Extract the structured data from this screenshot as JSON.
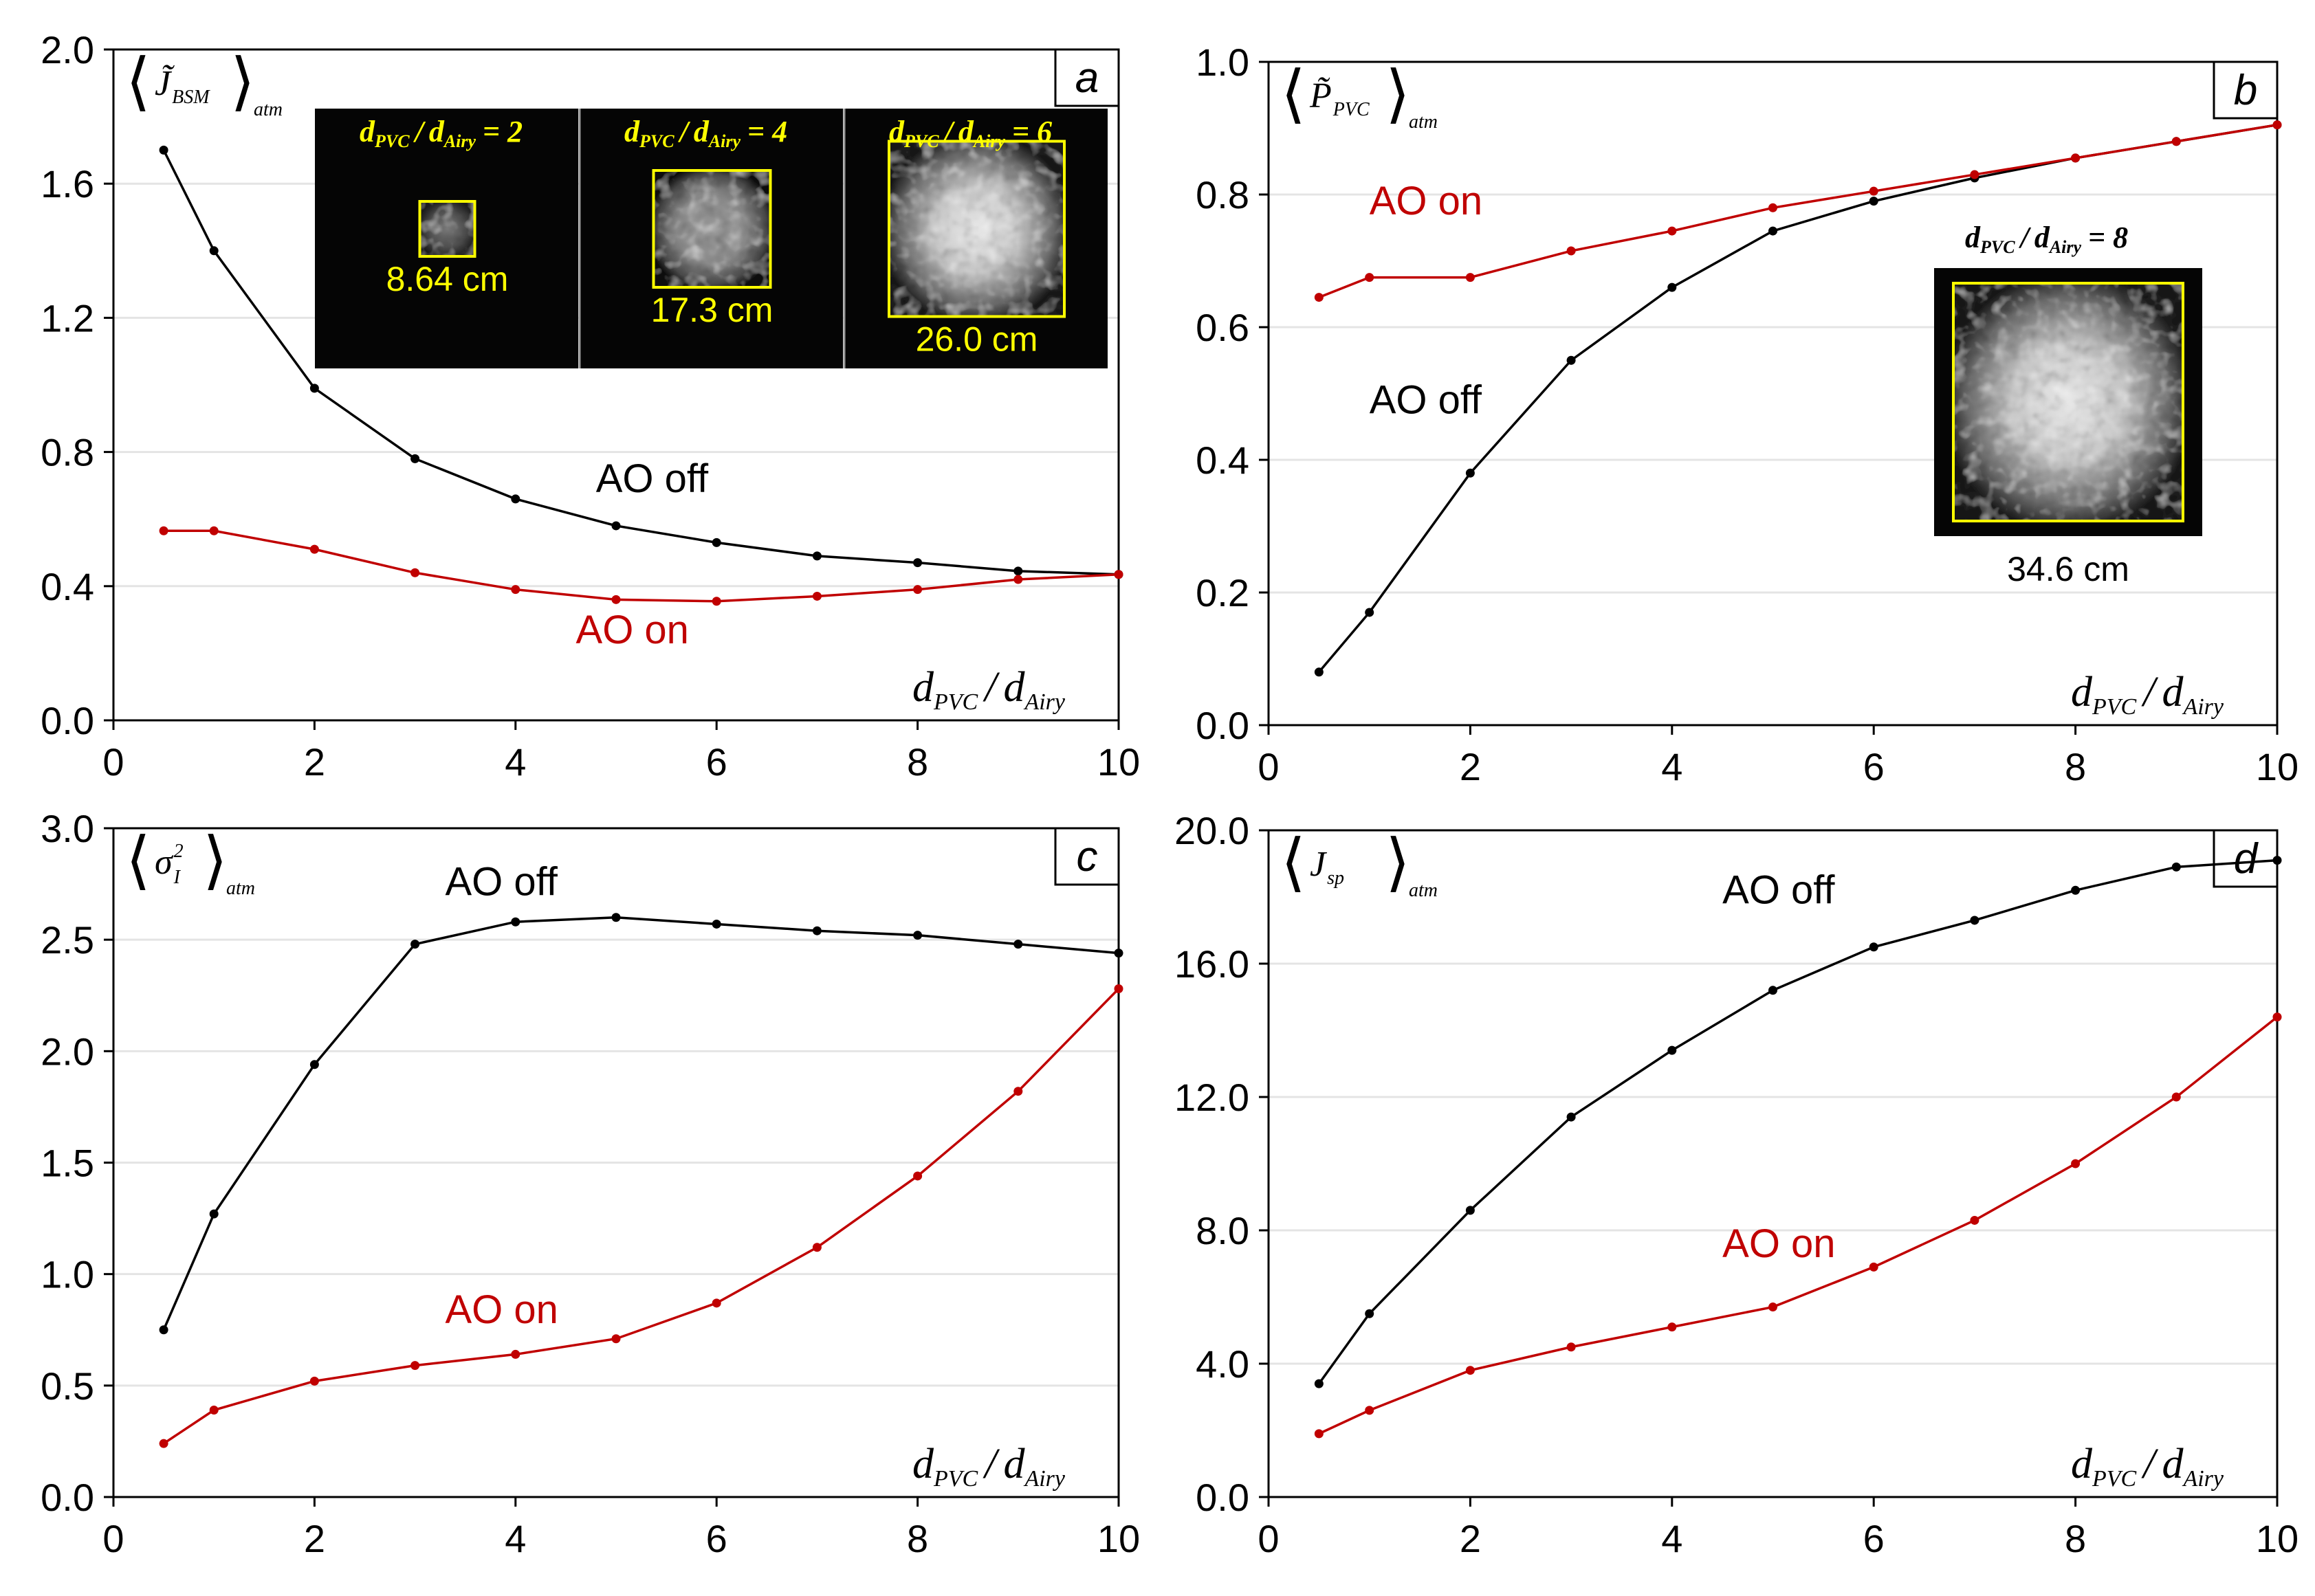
{
  "colors": {
    "ao_off": "#000000",
    "ao_on": "#c00000",
    "inset_outline": "#ffff00",
    "inset_text": "#ffff00",
    "grid": "#e4e4e4"
  },
  "x_axis_label": {
    "var1": "d",
    "sub1": "PVC",
    "sep": "/",
    "var2": "d",
    "sub2": "Airy"
  },
  "chart_data": [
    {
      "panel": "a",
      "type": "line",
      "ylabel": {
        "var": "J̃",
        "sub": "BSM",
        "avg_sub": "atm"
      },
      "xlim": [
        0,
        10
      ],
      "ylim": [
        0,
        2.0
      ],
      "xticks": [
        "0",
        "2",
        "4",
        "6",
        "8",
        "10"
      ],
      "yticks": [
        "0.0",
        "0.4",
        "0.8",
        "1.2",
        "1.6",
        "2.0"
      ],
      "ytick_values": [
        0,
        0.4,
        0.8,
        1.2,
        1.6,
        2.0
      ],
      "grid": "horizontal",
      "x": [
        0.5,
        1,
        2,
        3,
        4,
        5,
        6,
        7,
        8,
        9,
        10
      ],
      "series": [
        {
          "name": "AO off",
          "values": [
            1.7,
            1.4,
            0.99,
            0.78,
            0.66,
            0.58,
            0.53,
            0.49,
            0.47,
            0.445,
            0.435
          ]
        },
        {
          "name": "AO on",
          "values": [
            0.565,
            0.565,
            0.51,
            0.44,
            0.39,
            0.36,
            0.355,
            0.37,
            0.39,
            0.42,
            0.435
          ]
        }
      ],
      "insets": [
        {
          "ratio": "2",
          "size": "8.64 cm"
        },
        {
          "ratio": "4",
          "size": "17.3 cm"
        },
        {
          "ratio": "6",
          "size": "26.0 cm"
        }
      ]
    },
    {
      "panel": "b",
      "type": "line",
      "ylabel": {
        "var": "P̃",
        "sub": "PVC",
        "avg_sub": "atm"
      },
      "xlim": [
        0,
        10
      ],
      "ylim": [
        0,
        1.0
      ],
      "xticks": [
        "0",
        "2",
        "4",
        "6",
        "8",
        "10"
      ],
      "yticks": [
        "0.0",
        "0.2",
        "0.4",
        "0.6",
        "0.8",
        "1.0"
      ],
      "ytick_values": [
        0,
        0.2,
        0.4,
        0.6,
        0.8,
        1.0
      ],
      "grid": "horizontal",
      "x": [
        0.5,
        1,
        2,
        3,
        4,
        5,
        6,
        7,
        8,
        9,
        10
      ],
      "series": [
        {
          "name": "AO off",
          "values": [
            0.08,
            0.17,
            0.38,
            0.55,
            0.66,
            0.745,
            0.79,
            0.825,
            0.855,
            0.88,
            0.905
          ]
        },
        {
          "name": "AO on",
          "values": [
            0.645,
            0.675,
            0.675,
            0.715,
            0.745,
            0.78,
            0.805,
            0.83,
            0.855,
            0.88,
            0.905
          ]
        }
      ],
      "insets": [
        {
          "ratio": "8",
          "size": "34.6 cm"
        }
      ]
    },
    {
      "panel": "c",
      "type": "line",
      "ylabel": {
        "var": "σ",
        "sub": "I",
        "sup": "2",
        "avg_sub": "atm"
      },
      "xlim": [
        0,
        10
      ],
      "ylim": [
        0,
        3.0
      ],
      "xticks": [
        "0",
        "2",
        "4",
        "6",
        "8",
        "10"
      ],
      "yticks": [
        "0.0",
        "0.5",
        "1.0",
        "1.5",
        "2.0",
        "2.5",
        "3.0"
      ],
      "ytick_values": [
        0,
        0.5,
        1.0,
        1.5,
        2.0,
        2.5,
        3.0
      ],
      "grid": "horizontal",
      "x": [
        0.5,
        1,
        2,
        3,
        4,
        5,
        6,
        7,
        8,
        9,
        10
      ],
      "series": [
        {
          "name": "AO off",
          "values": [
            0.75,
            1.27,
            1.94,
            2.48,
            2.58,
            2.6,
            2.57,
            2.54,
            2.52,
            2.48,
            2.44
          ]
        },
        {
          "name": "AO on",
          "values": [
            0.24,
            0.39,
            0.52,
            0.59,
            0.64,
            0.71,
            0.87,
            1.12,
            1.44,
            1.82,
            2.28
          ]
        }
      ]
    },
    {
      "panel": "d",
      "type": "line",
      "ylabel": {
        "var": "J",
        "sub": "sp",
        "avg_sub": "atm"
      },
      "xlim": [
        0,
        10
      ],
      "ylim": [
        0,
        20.0
      ],
      "xticks": [
        "0",
        "2",
        "4",
        "6",
        "8",
        "10"
      ],
      "yticks": [
        "0.0",
        "4.0",
        "8.0",
        "12.0",
        "16.0",
        "20.0"
      ],
      "ytick_values": [
        0,
        4,
        8,
        12,
        16,
        20
      ],
      "grid": "horizontal",
      "x": [
        0.5,
        1,
        2,
        3,
        4,
        5,
        6,
        7,
        8,
        9,
        10
      ],
      "series": [
        {
          "name": "AO off",
          "values": [
            3.4,
            5.5,
            8.6,
            11.4,
            13.4,
            15.2,
            16.5,
            17.3,
            18.2,
            18.9,
            19.1
          ]
        },
        {
          "name": "AO on",
          "values": [
            1.9,
            2.6,
            3.8,
            4.5,
            5.1,
            5.7,
            6.9,
            8.3,
            10.0,
            12.0,
            14.4
          ]
        }
      ]
    }
  ]
}
